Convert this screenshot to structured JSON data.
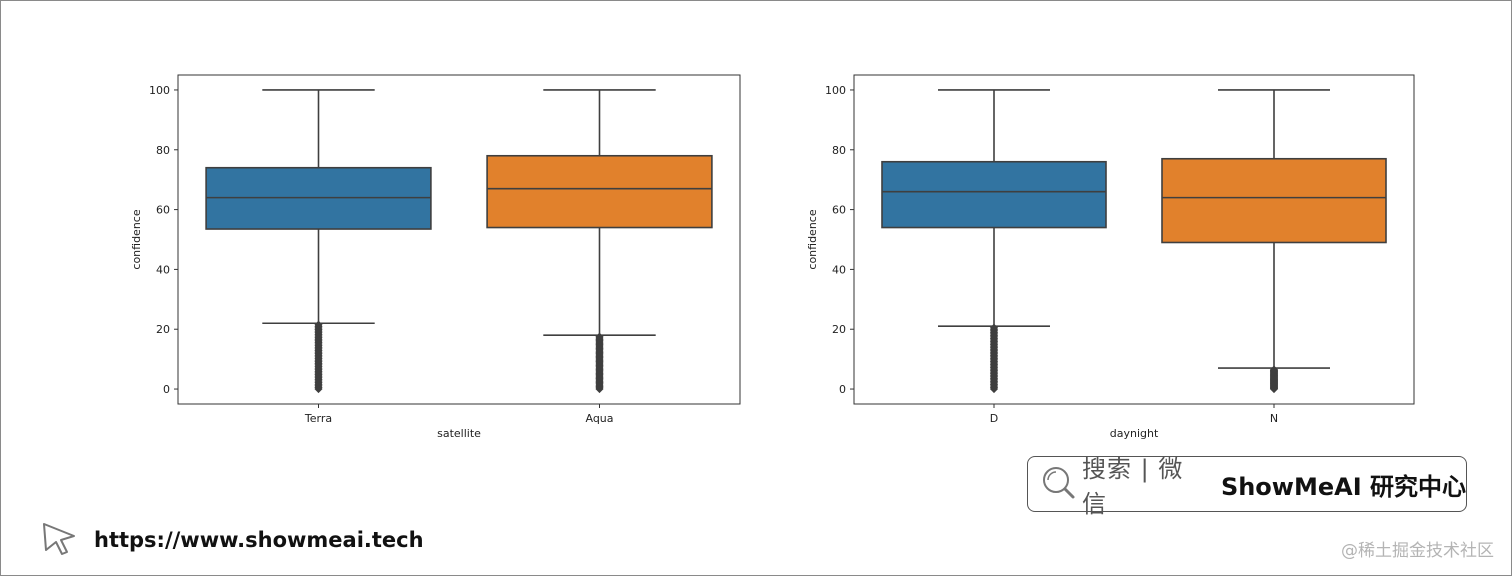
{
  "chart_data": [
    {
      "type": "box",
      "xlabel": "satellite",
      "ylabel": "confidence",
      "ylim": [
        -5,
        105
      ],
      "yticks": [
        0,
        20,
        40,
        60,
        80,
        100
      ],
      "grid": false,
      "categories": [
        "Terra",
        "Aqua"
      ],
      "colors": [
        "#3274a1",
        "#e1812c"
      ],
      "boxes": [
        {
          "name": "Terra",
          "whisker_low": 22,
          "q1": 53.5,
          "median": 64,
          "q3": 74,
          "whisker_high": 100,
          "outliers_range": [
            0,
            21.5
          ]
        },
        {
          "name": "Aqua",
          "whisker_low": 18,
          "q1": 54,
          "median": 67,
          "q3": 78,
          "whisker_high": 100,
          "outliers_range": [
            0,
            17.5
          ]
        }
      ]
    },
    {
      "type": "box",
      "xlabel": "daynight",
      "ylabel": "confidence",
      "ylim": [
        -5,
        105
      ],
      "yticks": [
        0,
        20,
        40,
        60,
        80,
        100
      ],
      "grid": false,
      "categories": [
        "D",
        "N"
      ],
      "colors": [
        "#3274a1",
        "#e1812c"
      ],
      "boxes": [
        {
          "name": "D",
          "whisker_low": 21,
          "q1": 54,
          "median": 66,
          "q3": 76,
          "whisker_high": 100,
          "outliers_range": [
            0,
            20.5
          ]
        },
        {
          "name": "N",
          "whisker_low": 7,
          "q1": 49,
          "median": 64,
          "q3": 77,
          "whisker_high": 100,
          "outliers_range": [
            0,
            6.5
          ]
        }
      ]
    }
  ],
  "badge": {
    "search_text": "搜索 | 微信",
    "brand_text": "ShowMeAI 研究中心"
  },
  "site": {
    "url": "https://www.showmeai.tech"
  },
  "watermark": "@稀土掘金技术社区",
  "icons": [
    "search-icon",
    "cursor-arrow-icon"
  ]
}
